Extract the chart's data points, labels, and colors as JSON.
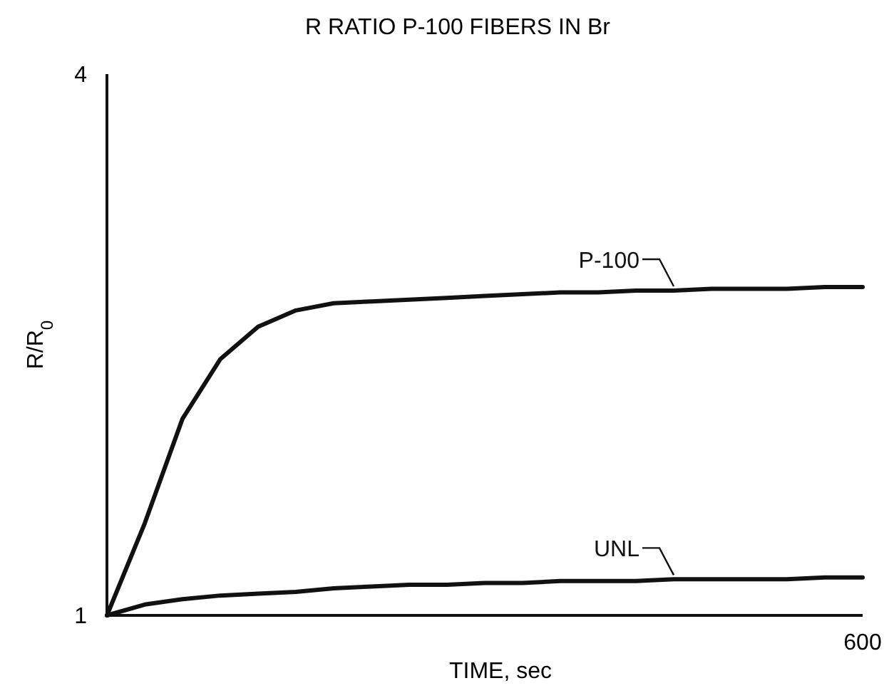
{
  "chart_data": {
    "type": "line",
    "title": "R  RATIO P-100 FIBERS IN Br",
    "xlabel": "TIME, sec",
    "ylabel": "R/R$_{0}$",
    "annotations": [
      "600"
    ],
    "categories": [
      null,
      null,
      null,
      null,
      null,
      null,
      null,
      null,
      null,
      null,
      null,
      null,
      null,
      null,
      null,
      null,
      null,
      null,
      null,
      null,
      null
    ],
    "ylim": [
      1,
      4
    ],
    "yticks": [
      1,
      4
    ],
    "grid": false,
    "legend": "right",
    "line_style": "solid",
    "series": [
      {
        "name": "P-100",
        "color": "#111111",
        "values": [
          1.0,
          1.51,
          2.09,
          2.42,
          2.6,
          2.69,
          2.73,
          2.74,
          2.75,
          2.76,
          2.77,
          2.78,
          2.79,
          2.79,
          2.8,
          2.8,
          2.81,
          2.81,
          2.81,
          2.82,
          2.82
        ]
      },
      {
        "name": "UNL",
        "color": "#111111",
        "values": [
          1.0,
          1.06,
          1.09,
          1.11,
          1.12,
          1.13,
          1.15,
          1.16,
          1.17,
          1.17,
          1.18,
          1.18,
          1.19,
          1.19,
          1.19,
          1.2,
          1.2,
          1.2,
          1.2,
          1.21,
          1.21
        ]
      }
    ]
  }
}
